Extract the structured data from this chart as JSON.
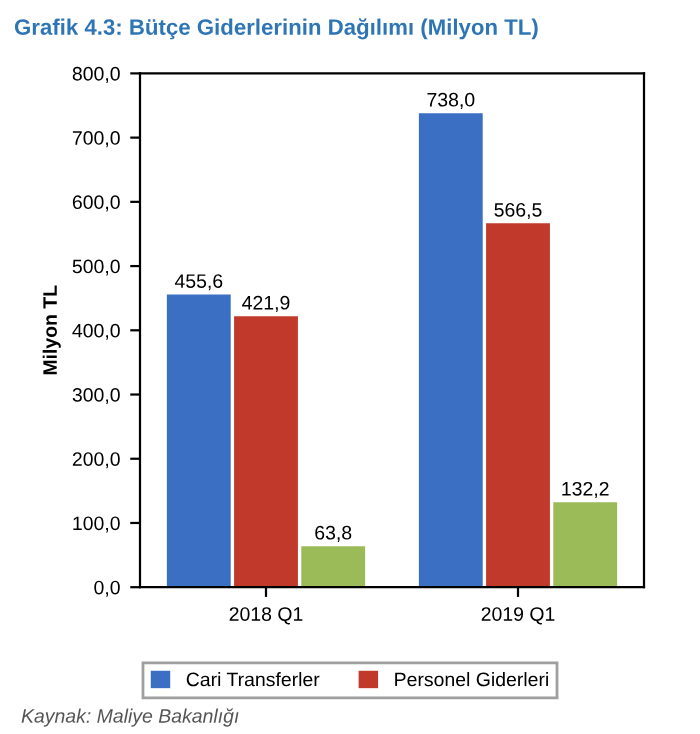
{
  "chart_data": {
    "type": "bar",
    "title": "Grafik 4.3: Bütçe Giderlerinin Dağılımı (Milyon TL)",
    "ylabel": "Milyon TL",
    "categories": [
      "2018 Q1",
      "2019 Q1"
    ],
    "series": [
      {
        "name": "Cari Transferler",
        "color": "#3a6fc4",
        "values": [
          455.6,
          738.0
        ],
        "value_labels": [
          "455,6",
          "738,0"
        ]
      },
      {
        "name": "Personel Giderleri",
        "color": "#c0392b",
        "values": [
          421.9,
          566.5
        ],
        "value_labels": [
          "421,9",
          "566,5"
        ]
      },
      {
        "color": "#9bbb59",
        "values": [
          63.8,
          132.2
        ],
        "value_labels": [
          "63,8",
          "132,2"
        ]
      }
    ],
    "ylim": [
      0,
      800
    ],
    "yticks": [
      {
        "value": 0,
        "label": "0,0"
      },
      {
        "value": 100,
        "label": "100,0"
      },
      {
        "value": 200,
        "label": "200,0"
      },
      {
        "value": 300,
        "label": "300,0"
      },
      {
        "value": 400,
        "label": "400,0"
      },
      {
        "value": 500,
        "label": "500,0"
      },
      {
        "value": 600,
        "label": "600,0"
      },
      {
        "value": 700,
        "label": "700,0"
      },
      {
        "value": 800,
        "label": "800,0"
      }
    ],
    "legend": "bottom",
    "grid": false,
    "annotations": [
      "Kaynak: Maliye Bakanlığı"
    ]
  }
}
